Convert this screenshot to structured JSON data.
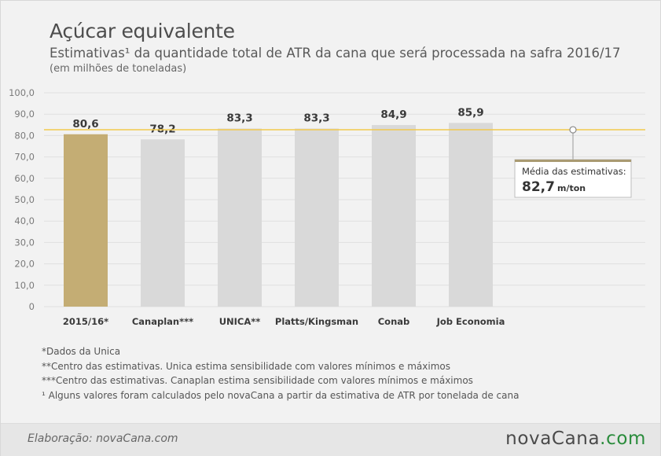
{
  "header": {
    "title": "Açúcar equivalente",
    "subtitle": "Estimativas¹ da quantidade total de ATR da cana que será processada na safra 2016/17",
    "unit": "(em milhões de toneladas)"
  },
  "chart_data": {
    "type": "bar",
    "categories": [
      "2015/16*",
      "Canaplan***",
      "UNICA**",
      "Platts/Kingsman",
      "Conab",
      "Job Economia"
    ],
    "values": [
      80.6,
      78.2,
      83.3,
      83.3,
      84.9,
      85.9
    ],
    "value_labels": [
      "80,6",
      "78,2",
      "83,3",
      "83,3",
      "84,9",
      "85,9"
    ],
    "highlight_index": 0,
    "ylim": [
      0,
      100
    ],
    "yticks": [
      0,
      10,
      20,
      30,
      40,
      50,
      60,
      70,
      80,
      90,
      100
    ],
    "ytick_labels": [
      "0",
      "10,0",
      "20,0",
      "30,0",
      "40,0",
      "50,0",
      "60,0",
      "70,0",
      "80,0",
      "90,0",
      "100,0"
    ],
    "grid": true,
    "colors": {
      "highlight": "#c4ad74",
      "bar": "#d9d9d9",
      "average_line": "#f2c94c",
      "grid": "#e0e0e0"
    },
    "average": {
      "value": 82.7,
      "label": "Média das estimativas:",
      "value_text": "82,7",
      "unit": "m/ton"
    }
  },
  "footnotes": [
    "*Dados da Unica",
    "**Centro das estimativas. Unica estima sensibilidade com valores mínimos e máximos",
    "***Centro das estimativas. Canaplan estima sensibilidade com valores mínimos e máximos",
    "¹ Alguns valores foram calculados pelo novaCana a partir da estimativa de ATR por tonelada de cana"
  ],
  "footer": {
    "credit": "Elaboração: novaCana.com",
    "logo_main": "novaCana",
    "logo_suffix": ".com"
  }
}
